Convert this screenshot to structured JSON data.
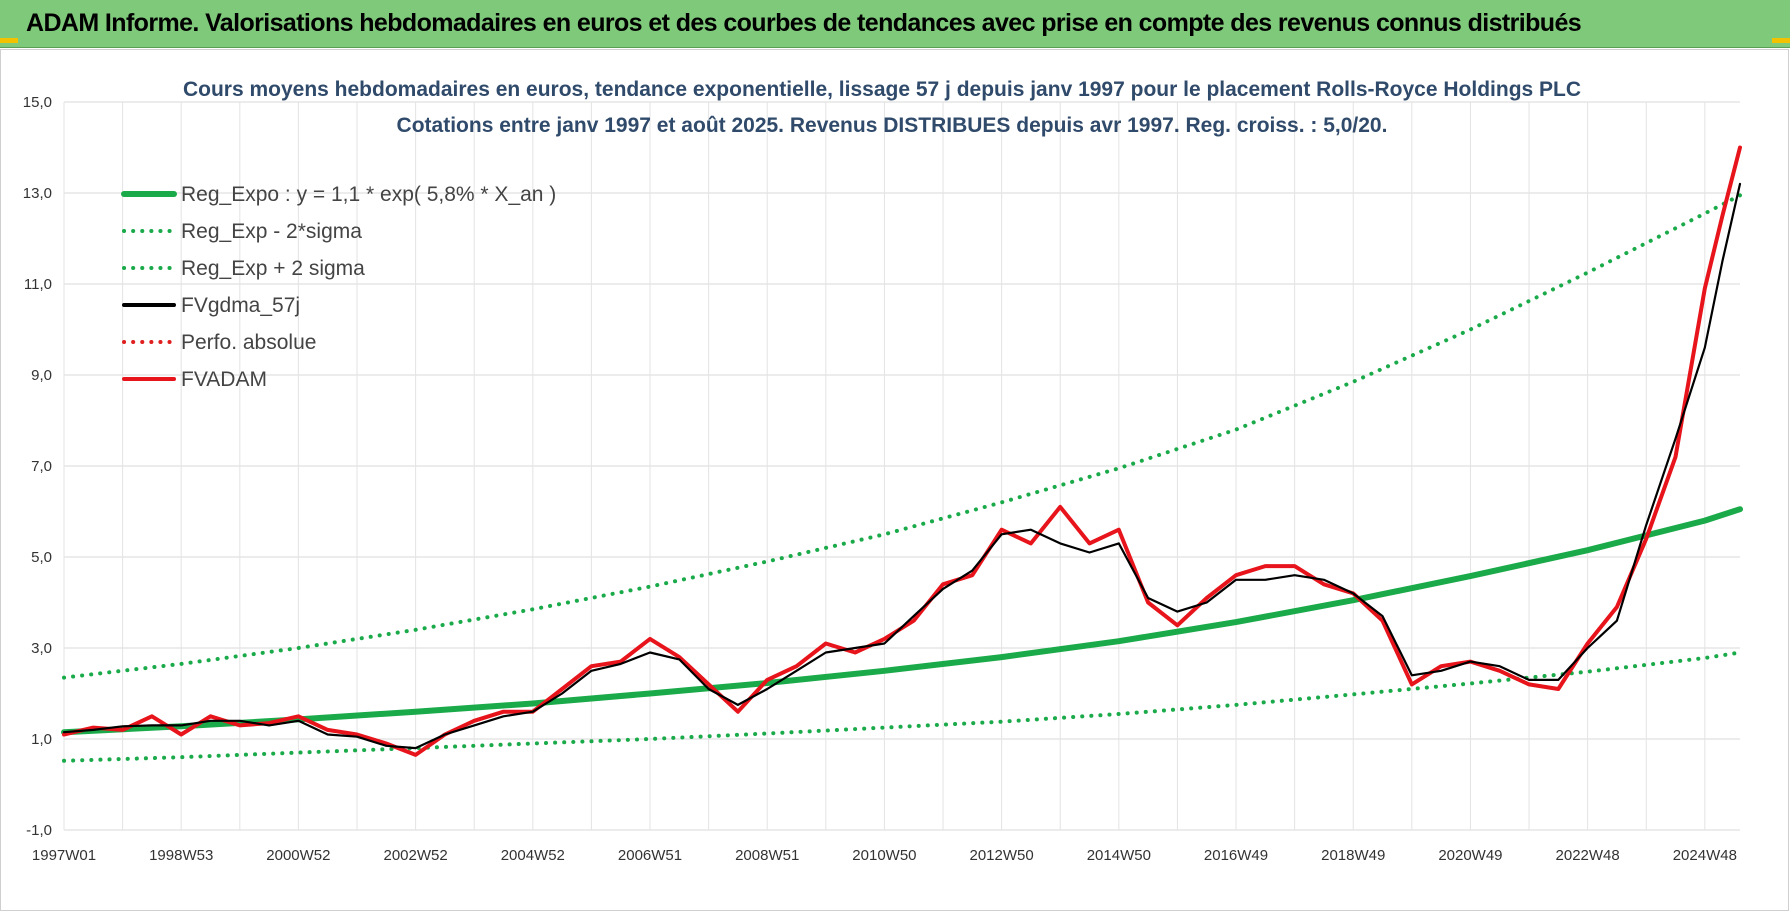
{
  "header": {
    "banner_title": "ADAM Informe. Valorisations hebdomadaires en euros et des courbes de tendances avec prise en compte des revenus connus distribués",
    "banner_color": "#7fc97a"
  },
  "chart_data": {
    "type": "line",
    "title": "Cours moyens hebdomadaires en euros, tendance exponentielle, lissage 57 j depuis janv 1997  pour le placement Rolls-Royce Holdings PLC",
    "subtitle": "Cotations entre janv 1997 et août 2025.  Revenus DISTRIBUES depuis avr 1997. Reg. croiss. : 5,0/20.",
    "xlabel": "",
    "ylabel": "",
    "xlim": [
      1997.0,
      2025.6
    ],
    "ylim": [
      -1,
      15
    ],
    "y_ticks": [
      -1,
      1,
      3,
      5,
      7,
      9,
      11,
      13,
      15
    ],
    "y_tick_labels": [
      "-1,0",
      "1,0",
      "3,0",
      "5,0",
      "7,0",
      "9,0",
      "11,0",
      "13,0",
      "15,0"
    ],
    "x_ticks": [
      1997.0,
      1999.0,
      2001.0,
      2003.0,
      2005.0,
      2007.0,
      2009.0,
      2011.0,
      2013.0,
      2015.0,
      2017.0,
      2019.0,
      2021.0,
      2023.0,
      2025.0
    ],
    "x_tick_labels": [
      "1997W01",
      "1998W53",
      "2000W52",
      "2002W52",
      "2004W52",
      "2006W51",
      "2008W51",
      "2010W50",
      "2012W50",
      "2014W50",
      "2016W49",
      "2018W49",
      "2020W49",
      "2022W48",
      "2024W48"
    ],
    "grid": true,
    "legend_position": "top-left",
    "series": [
      {
        "name": "Reg_Expo : y = 1,1 * exp( 5,8% *  X_an )",
        "style": "solid-thick",
        "color": "#1aaa4a",
        "x": [
          1997.0,
          1999.0,
          2001.0,
          2003.0,
          2005.0,
          2007.0,
          2009.0,
          2011.0,
          2013.0,
          2015.0,
          2017.0,
          2019.0,
          2021.0,
          2023.0,
          2025.0,
          2025.6
        ],
        "y": [
          1.15,
          1.28,
          1.43,
          1.6,
          1.78,
          2.0,
          2.23,
          2.5,
          2.8,
          3.15,
          3.57,
          4.05,
          4.58,
          5.15,
          5.8,
          6.05
        ]
      },
      {
        "name": "Reg_Exp - 2*sigma",
        "style": "dotted",
        "color": "#1aaa4a",
        "x": [
          1997.0,
          1999.0,
          2001.0,
          2003.0,
          2005.0,
          2007.0,
          2009.0,
          2011.0,
          2013.0,
          2015.0,
          2017.0,
          2019.0,
          2021.0,
          2023.0,
          2025.0,
          2025.6
        ],
        "y": [
          0.52,
          0.6,
          0.7,
          0.8,
          0.9,
          1.0,
          1.12,
          1.25,
          1.38,
          1.55,
          1.75,
          1.98,
          2.22,
          2.48,
          2.78,
          2.9
        ]
      },
      {
        "name": "Reg_Exp + 2 sigma",
        "style": "dotted",
        "color": "#1aaa4a",
        "x": [
          1997.0,
          1999.0,
          2001.0,
          2003.0,
          2005.0,
          2007.0,
          2009.0,
          2011.0,
          2013.0,
          2015.0,
          2017.0,
          2019.0,
          2021.0,
          2023.0,
          2025.0,
          2025.6
        ],
        "y": [
          2.35,
          2.65,
          3.0,
          3.4,
          3.85,
          4.35,
          4.9,
          5.5,
          6.2,
          6.95,
          7.8,
          8.85,
          10.0,
          11.25,
          12.55,
          12.95
        ]
      },
      {
        "name": "FVgdma_57j",
        "style": "solid",
        "color": "#000000",
        "x": [
          1997.0,
          1997.5,
          1998.0,
          1998.5,
          1999.0,
          1999.5,
          2000.0,
          2000.5,
          2001.0,
          2001.5,
          2002.0,
          2002.5,
          2003.0,
          2003.5,
          2004.0,
          2004.5,
          2005.0,
          2005.5,
          2006.0,
          2006.5,
          2007.0,
          2007.5,
          2008.0,
          2008.5,
          2009.0,
          2009.5,
          2010.0,
          2010.5,
          2011.0,
          2011.5,
          2012.0,
          2012.5,
          2013.0,
          2013.5,
          2014.0,
          2014.5,
          2015.0,
          2015.5,
          2016.0,
          2016.5,
          2017.0,
          2017.5,
          2018.0,
          2018.5,
          2019.0,
          2019.5,
          2020.0,
          2020.5,
          2021.0,
          2021.5,
          2022.0,
          2022.5,
          2023.0,
          2023.5,
          2024.0,
          2024.5,
          2025.0,
          2025.3,
          2025.6
        ],
        "y": [
          1.15,
          1.2,
          1.28,
          1.3,
          1.3,
          1.4,
          1.4,
          1.3,
          1.4,
          1.1,
          1.05,
          0.85,
          0.8,
          1.1,
          1.3,
          1.5,
          1.6,
          2.0,
          2.5,
          2.65,
          2.9,
          2.75,
          2.1,
          1.75,
          2.1,
          2.5,
          2.9,
          3.0,
          3.1,
          3.7,
          4.3,
          4.7,
          5.5,
          5.6,
          5.3,
          5.1,
          5.3,
          4.1,
          3.8,
          4.0,
          4.5,
          4.5,
          4.6,
          4.5,
          4.2,
          3.7,
          2.4,
          2.5,
          2.7,
          2.6,
          2.3,
          2.3,
          3.0,
          3.6,
          5.7,
          7.6,
          9.6,
          11.5,
          13.2
        ]
      },
      {
        "name": "Perfo. absolue",
        "style": "dotted",
        "color": "#e02020",
        "x": [],
        "y": []
      },
      {
        "name": "FVADAM",
        "style": "solid-thick",
        "color": "#e8141b",
        "x": [
          1997.0,
          1997.5,
          1998.0,
          1998.5,
          1999.0,
          1999.5,
          2000.0,
          2000.5,
          2001.0,
          2001.5,
          2002.0,
          2002.5,
          2003.0,
          2003.5,
          2004.0,
          2004.5,
          2005.0,
          2005.5,
          2006.0,
          2006.5,
          2007.0,
          2007.5,
          2008.0,
          2008.5,
          2009.0,
          2009.5,
          2010.0,
          2010.5,
          2011.0,
          2011.5,
          2012.0,
          2012.5,
          2013.0,
          2013.5,
          2014.0,
          2014.5,
          2015.0,
          2015.5,
          2016.0,
          2016.5,
          2017.0,
          2017.5,
          2018.0,
          2018.5,
          2019.0,
          2019.5,
          2020.0,
          2020.5,
          2021.0,
          2021.5,
          2022.0,
          2022.5,
          2023.0,
          2023.5,
          2024.0,
          2024.5,
          2025.0,
          2025.3,
          2025.6
        ],
        "y": [
          1.1,
          1.25,
          1.2,
          1.5,
          1.1,
          1.5,
          1.3,
          1.35,
          1.5,
          1.2,
          1.1,
          0.9,
          0.65,
          1.1,
          1.4,
          1.6,
          1.6,
          2.1,
          2.6,
          2.7,
          3.2,
          2.8,
          2.2,
          1.6,
          2.3,
          2.6,
          3.1,
          2.9,
          3.2,
          3.6,
          4.4,
          4.6,
          5.6,
          5.3,
          6.1,
          5.3,
          5.6,
          4.0,
          3.5,
          4.1,
          4.6,
          4.8,
          4.8,
          4.4,
          4.2,
          3.6,
          2.2,
          2.6,
          2.7,
          2.5,
          2.2,
          2.1,
          3.1,
          3.9,
          5.4,
          7.2,
          10.9,
          12.5,
          14.0
        ]
      }
    ]
  }
}
